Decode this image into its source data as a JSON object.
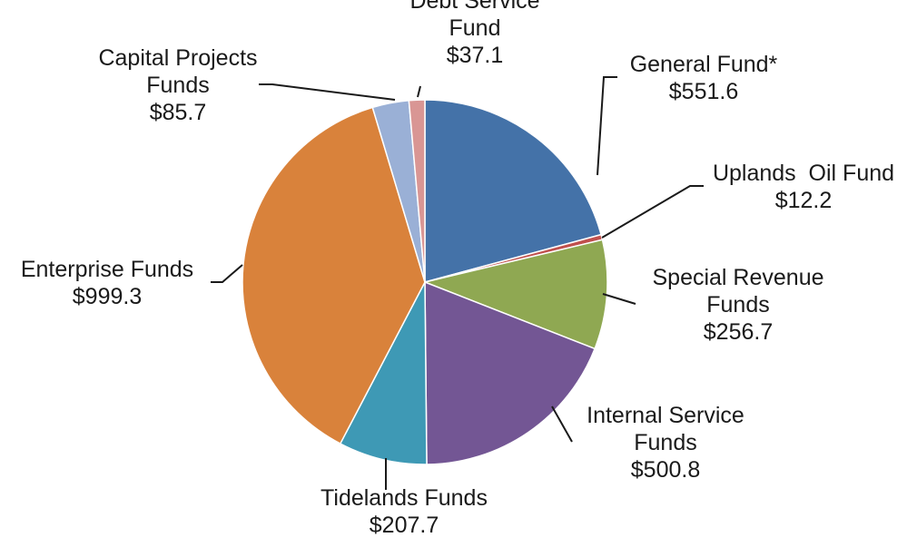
{
  "chart_data": {
    "type": "pie",
    "title": "",
    "slices": [
      {
        "name_lines": [
          "General Fund*"
        ],
        "value_label": "$551.6",
        "value": 551.6,
        "color": "#4472a8"
      },
      {
        "name_lines": [
          "Uplands  Oil Fund"
        ],
        "value_label": "$12.2",
        "value": 12.2,
        "color": "#c0504d"
      },
      {
        "name_lines": [
          "Special Revenue",
          "Funds"
        ],
        "value_label": "$256.7",
        "value": 256.7,
        "color": "#8fa852"
      },
      {
        "name_lines": [
          "Internal Service",
          "Funds"
        ],
        "value_label": "$500.8",
        "value": 500.8,
        "color": "#735694"
      },
      {
        "name_lines": [
          "Tidelands Funds"
        ],
        "value_label": "$207.7",
        "value": 207.7,
        "color": "#3e99b5"
      },
      {
        "name_lines": [
          "Enterprise Funds"
        ],
        "value_label": "$999.3",
        "value": 999.3,
        "color": "#d9823b"
      },
      {
        "name_lines": [
          "Capital Projects",
          "Funds"
        ],
        "value_label": "$85.7",
        "value": 85.7,
        "color": "#9ab0d6"
      },
      {
        "name_lines": [
          "Debt Service",
          "Fund"
        ],
        "value_label": "$37.1",
        "value": 37.1,
        "color": "#d99694"
      }
    ]
  }
}
